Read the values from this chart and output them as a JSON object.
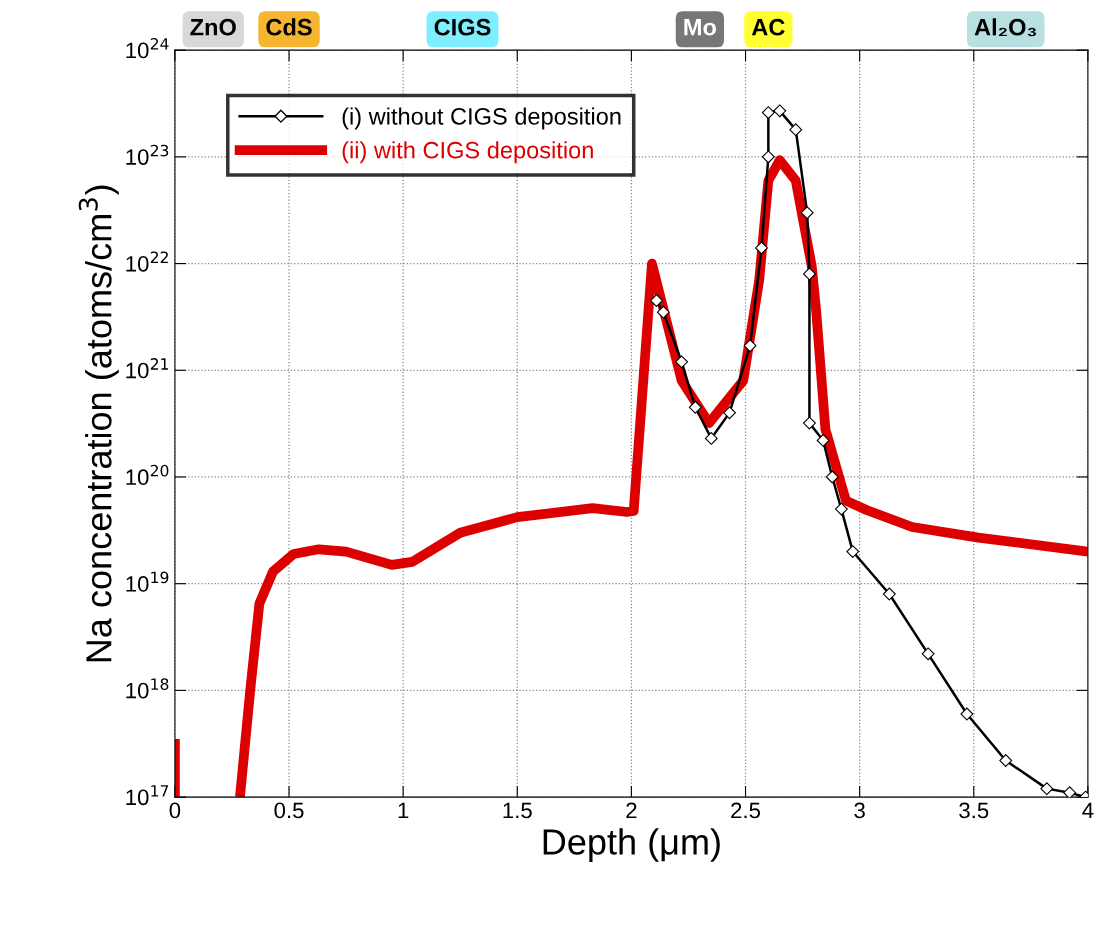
{
  "chart_data": {
    "type": "line",
    "xlabel": "Depth (μm)",
    "ylabel": "Na concentration (atoms/cm$^{3}$)",
    "log": "y",
    "grid": true,
    "legend": "top left",
    "xlim": [
      0,
      4
    ],
    "xticks": [
      0,
      0.5,
      1,
      1.5,
      2,
      2.5,
      3,
      3.5,
      4
    ],
    "ylim": [
      1e+17,
      1e+24
    ],
    "yticks": [
      {
        "value": 1e+17,
        "label": "10$^{17}$"
      },
      {
        "value": 1e+18,
        "label": "10$^{18}$"
      },
      {
        "value": 1e+19,
        "label": "10$^{19}$"
      },
      {
        "value": 1e+20,
        "label": "10$^{20}$"
      },
      {
        "value": 1e+21,
        "label": "10$^{21}$"
      },
      {
        "value": 1e+22,
        "label": "10$^{22}$"
      },
      {
        "value": 1e+23,
        "label": "10$^{23}$"
      },
      {
        "value": 1e+24,
        "label": "10$^{24}$"
      }
    ],
    "annotations": [
      "ZnO",
      "CdS",
      "CIGS",
      "Mo",
      "AC",
      "Al₂O₃"
    ],
    "series": [
      {
        "name": "(i) without CIGS deposition",
        "color": "#000000",
        "marker": "diamond",
        "line_style": "solid",
        "x": [
          2.11,
          2.14,
          2.22,
          2.28,
          2.35,
          2.43,
          2.52,
          2.57,
          2.6,
          2.6,
          2.65,
          2.72,
          2.77,
          2.78,
          2.78,
          2.84,
          2.88,
          2.92,
          2.97,
          3.13,
          3.3,
          3.47,
          3.64,
          3.82,
          3.92,
          3.99
        ],
        "values": [
          4.5e+21,
          3.5e+21,
          1.2e+21,
          4.5e+20,
          2.3e+20,
          4e+20,
          1.7e+21,
          1.4e+22,
          1e+23,
          2.6e+23,
          2.7e+23,
          1.8e+23,
          3e+22,
          8e+21,
          3.2e+20,
          2.2e+20,
          1e+20,
          5e+19,
          2e+19,
          8e+18,
          2.2e+18,
          6e+17,
          2.2e+17,
          1.2e+17,
          1.1e+17,
          1e+17
        ]
      },
      {
        "name": "(ii) with CIGS deposition",
        "color": "#dd0000",
        "marker": "none",
        "line_style": "solid",
        "x": [
          0,
          0,
          0.15,
          0.285,
          0.33,
          0.37,
          0.43,
          0.52,
          0.63,
          0.75,
          0.95,
          1.04,
          1.25,
          1.5,
          1.83,
          1.98,
          2.01,
          2.09,
          2.22,
          2.34,
          2.49,
          2.56,
          2.6,
          2.65,
          2.72,
          2.79,
          2.81,
          2.85,
          2.91,
          2.94,
          3.03,
          3.23,
          3.52,
          4.0
        ],
        "values": [
          1e+17,
          3.5e+17,
          null,
          1e+17,
          1e+18,
          6.5e+18,
          1.3e+19,
          1.9e+19,
          2.1e+19,
          2e+19,
          1.5e+19,
          1.6e+19,
          3e+19,
          4.2e+19,
          5.1e+19,
          4.7e+19,
          4.8e+19,
          1e+22,
          8e+20,
          3.2e+20,
          8e+20,
          7e+21,
          6e+22,
          9.3e+22,
          6e+22,
          9.5e+21,
          3.5e+21,
          2.8e+20,
          1e+20,
          6e+19,
          4.9e+19,
          3.4e+19,
          2.7e+19,
          2e+19
        ]
      }
    ]
  }
}
